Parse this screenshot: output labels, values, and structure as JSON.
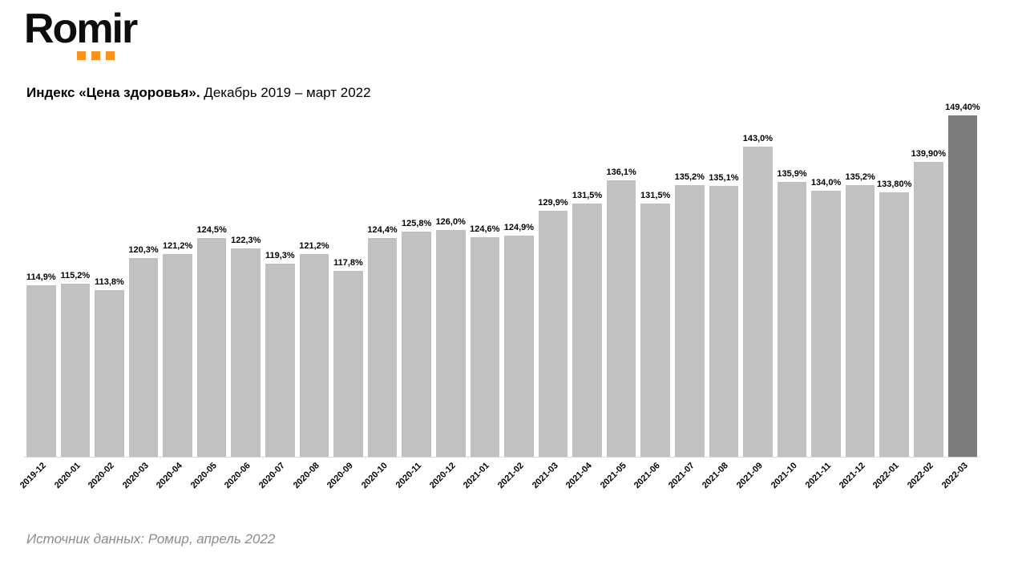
{
  "logo": {
    "text": "Romir",
    "dot_color": "#F7941D"
  },
  "header": {
    "title_bold": "Индекс «Цена здоровья».",
    "title_period": " Декабрь 2019 – март 2022"
  },
  "chart_data": {
    "type": "bar",
    "title": "Индекс «Цена здоровья». Декабрь 2019 – март 2022",
    "xlabel": "",
    "ylabel": "",
    "ylim": [
      80,
      150
    ],
    "grid": false,
    "legend": "none",
    "bar_color": "#C1C1C1",
    "highlight_color": "#7C7C7C",
    "highlight_index": 27,
    "categories": [
      "2019-12",
      "2020-01",
      "2020-02",
      "2020-03",
      "2020-04",
      "2020-05",
      "2020-06",
      "2020-07",
      "2020-08",
      "2020-09",
      "2020-10",
      "2020-11",
      "2020-12",
      "2021-01",
      "2021-02",
      "2021-03",
      "2021-04",
      "2021-05",
      "2021-06",
      "2021-07",
      "2021-08",
      "2021-09",
      "2021-10",
      "2021-11",
      "2021-12",
      "2022-01",
      "2022-02",
      "2022-03"
    ],
    "values": [
      114.9,
      115.2,
      113.8,
      120.3,
      121.2,
      124.5,
      122.3,
      119.3,
      121.2,
      117.8,
      124.4,
      125.8,
      126.0,
      124.6,
      124.9,
      129.9,
      131.5,
      136.1,
      131.5,
      135.2,
      135.1,
      143.0,
      135.9,
      134.0,
      135.2,
      133.8,
      139.9,
      149.4
    ],
    "labels": [
      "114,9%",
      "115,2%",
      "113,8%",
      "120,3%",
      "121,2%",
      "124,5%",
      "122,3%",
      "119,3%",
      "121,2%",
      "117,8%",
      "124,4%",
      "125,8%",
      "126,0%",
      "124,6%",
      "124,9%",
      "129,9%",
      "131,5%",
      "136,1%",
      "131,5%",
      "135,2%",
      "135,1%",
      "143,0%",
      "135,9%",
      "134,0%",
      "135,2%",
      "133,80%",
      "139,90%",
      "149,40%"
    ]
  },
  "footer": {
    "source": "Источник данных: Ромир, апрель 2022"
  }
}
